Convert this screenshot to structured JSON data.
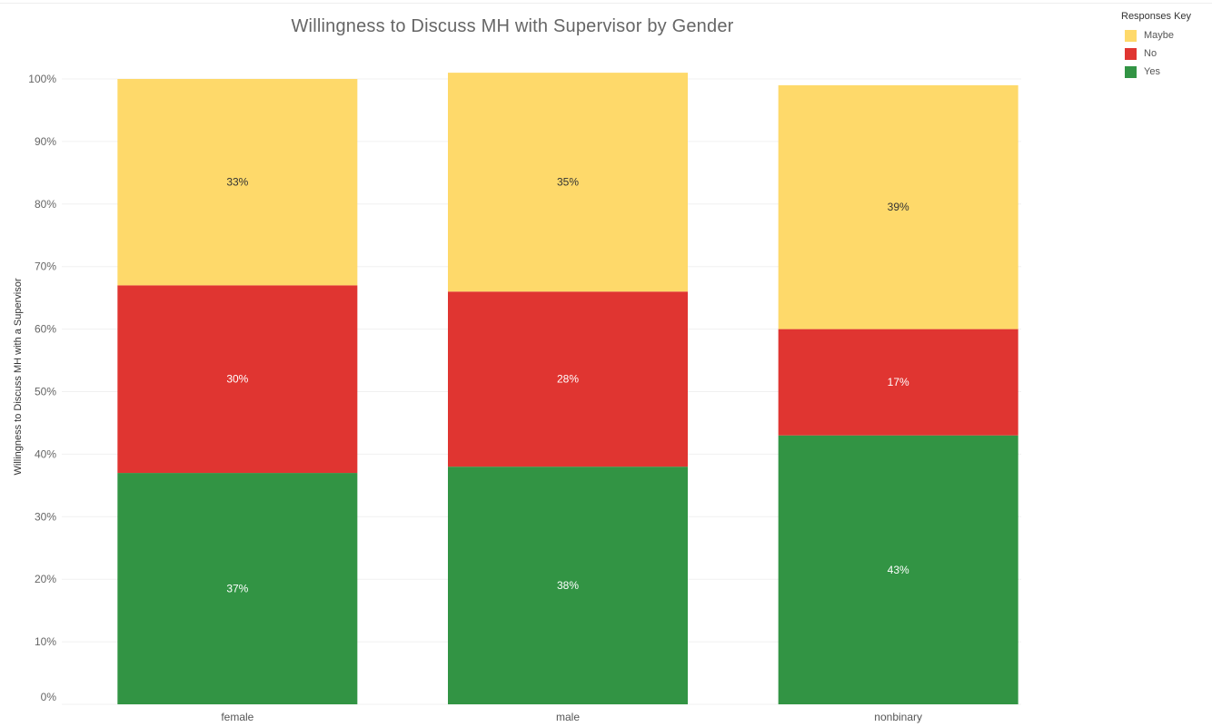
{
  "chart_data": {
    "type": "bar",
    "stacked": true,
    "title": "Willingness to Discuss MH with Supervisor by Gender",
    "xlabel": "",
    "ylabel": "Willingness to Discuss MH with a Supervisor",
    "categories": [
      "female",
      "male",
      "nonbinary"
    ],
    "ylim": [
      0,
      100
    ],
    "yticks": [
      "0%",
      "10%",
      "20%",
      "30%",
      "40%",
      "50%",
      "60%",
      "70%",
      "80%",
      "90%",
      "100%"
    ],
    "grid": true,
    "series": [
      {
        "name": "Yes",
        "color": "#329444",
        "values": [
          37,
          38,
          43
        ],
        "labels": [
          "37%",
          "38%",
          "43%"
        ]
      },
      {
        "name": "No",
        "color": "#e03531",
        "values": [
          30,
          28,
          17
        ],
        "labels": [
          "30%",
          "28%",
          "17%"
        ]
      },
      {
        "name": "Maybe",
        "color": "#fed96a",
        "values": [
          33,
          35,
          39
        ],
        "labels": [
          "33%",
          "35%",
          "39%"
        ]
      }
    ],
    "legend": {
      "title": "Responses Key",
      "position": "top-right",
      "order": [
        "Maybe",
        "No",
        "Yes"
      ]
    }
  }
}
